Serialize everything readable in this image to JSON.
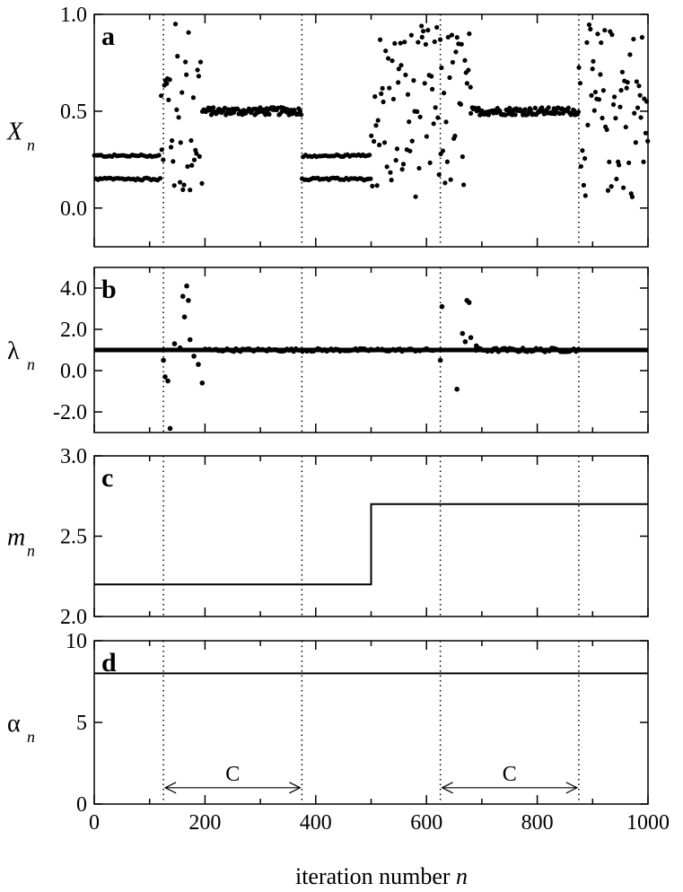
{
  "chart_data": [
    {
      "type": "scatter",
      "panel_label": "a",
      "ylabel": "X",
      "ylabel_subscript": "n",
      "ylim": [
        -0.2,
        1.0
      ],
      "yticks": [
        0.0,
        0.5,
        1.0
      ],
      "ytick_labels": [
        "0.0",
        "0.5",
        "1.0"
      ],
      "xlim": [
        0,
        1000
      ],
      "segments": [
        {
          "x": [
            0,
            120
          ],
          "behavior": "period-2",
          "levels": [
            0.27,
            0.15
          ]
        },
        {
          "x": [
            120,
            195
          ],
          "behavior": "transient",
          "y_range": [
            0.0,
            0.98
          ]
        },
        {
          "x": [
            195,
            375
          ],
          "behavior": "fixed-point",
          "level": 0.5
        },
        {
          "x": [
            375,
            500
          ],
          "behavior": "period-2",
          "levels": [
            0.27,
            0.15
          ]
        },
        {
          "x": [
            500,
            625
          ],
          "behavior": "chaotic",
          "y_range": [
            0.05,
            0.95
          ]
        },
        {
          "x": [
            625,
            680
          ],
          "behavior": "transient",
          "y_range": [
            0.05,
            0.95
          ]
        },
        {
          "x": [
            680,
            875
          ],
          "behavior": "fixed-point",
          "level": 0.5
        },
        {
          "x": [
            875,
            1000
          ],
          "behavior": "chaotic",
          "y_range": [
            0.05,
            0.95
          ]
        }
      ]
    },
    {
      "type": "scatter",
      "panel_label": "b",
      "ylabel": "λ",
      "ylabel_subscript": "n",
      "ylim": [
        -3.0,
        5.0
      ],
      "yticks": [
        -2.0,
        0.0,
        2.0,
        4.0
      ],
      "ytick_labels": [
        "-2.0",
        "0.0",
        "2.0",
        "4.0"
      ],
      "xlim": [
        0,
        1000
      ],
      "baseline": 1.0,
      "notable_points": [
        {
          "x": 125,
          "y": 0.5
        },
        {
          "x": 128,
          "y": -0.3
        },
        {
          "x": 133,
          "y": -0.5
        },
        {
          "x": 137,
          "y": -2.8
        },
        {
          "x": 145,
          "y": 1.3
        },
        {
          "x": 155,
          "y": 1.1
        },
        {
          "x": 160,
          "y": 3.6
        },
        {
          "x": 163,
          "y": 2.6
        },
        {
          "x": 167,
          "y": 4.1
        },
        {
          "x": 170,
          "y": 3.4
        },
        {
          "x": 173,
          "y": 1.5
        },
        {
          "x": 180,
          "y": 0.7
        },
        {
          "x": 188,
          "y": 0.3
        },
        {
          "x": 195,
          "y": -0.6
        },
        {
          "x": 625,
          "y": 0.5
        },
        {
          "x": 628,
          "y": 3.1
        },
        {
          "x": 655,
          "y": -0.9
        },
        {
          "x": 665,
          "y": 1.8
        },
        {
          "x": 670,
          "y": 1.4
        },
        {
          "x": 673,
          "y": 3.4
        },
        {
          "x": 677,
          "y": 3.3
        },
        {
          "x": 680,
          "y": 1.6
        },
        {
          "x": 690,
          "y": 1.2
        }
      ]
    },
    {
      "type": "line",
      "panel_label": "c",
      "ylabel": "m",
      "ylabel_subscript": "n",
      "ylim": [
        2.0,
        3.0
      ],
      "yticks": [
        2.0,
        2.5,
        3.0
      ],
      "ytick_labels": [
        "2.0",
        "2.5",
        "3.0"
      ],
      "xlim": [
        0,
        1000
      ],
      "x": [
        0,
        500,
        500,
        1000
      ],
      "y": [
        2.2,
        2.2,
        2.7,
        2.7
      ]
    },
    {
      "type": "line",
      "panel_label": "d",
      "ylabel": "α",
      "ylabel_subscript": "n",
      "ylim": [
        0,
        10
      ],
      "yticks": [
        0,
        5,
        10
      ],
      "ytick_labels": [
        "0",
        "5",
        "10"
      ],
      "xlim": [
        0,
        1000
      ],
      "xticks": [
        0,
        200,
        400,
        600,
        800,
        1000
      ],
      "xtick_labels": [
        "0",
        "200",
        "400",
        "600",
        "800",
        "1000"
      ],
      "x": [
        0,
        1000
      ],
      "y": [
        8,
        8
      ],
      "annotations": [
        {
          "text": "C",
          "x_start": 125,
          "x_end": 375,
          "y": 1.0
        },
        {
          "text": "C",
          "x_start": 625,
          "x_end": 875,
          "y": 1.0
        }
      ]
    }
  ],
  "shared": {
    "xlabel": "iteration number",
    "xlabel_var": "n",
    "control_boundaries": [
      125,
      375,
      625,
      875
    ]
  }
}
